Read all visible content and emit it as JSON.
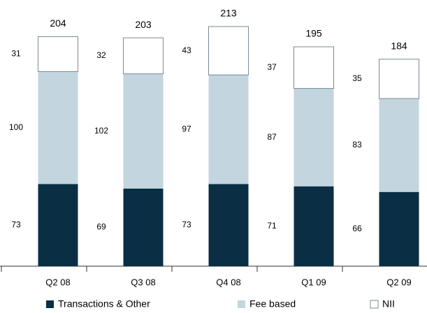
{
  "chart_data": {
    "type": "bar",
    "stacked": true,
    "categories": [
      "Q2 08",
      "Q3 08",
      "Q4 08",
      "Q1 09",
      "Q2 09"
    ],
    "series": [
      {
        "name": "Transactions & Other",
        "color": "#0a2f45",
        "values": [
          73,
          69,
          73,
          71,
          66
        ]
      },
      {
        "name": "Fee based",
        "color": "#c3d5df",
        "values": [
          100,
          102,
          97,
          87,
          83
        ]
      },
      {
        "name": "NII",
        "color": "#ffffff",
        "values": [
          31,
          32,
          43,
          37,
          35
        ]
      }
    ],
    "totals": [
      204,
      203,
      213,
      195,
      184
    ]
  }
}
